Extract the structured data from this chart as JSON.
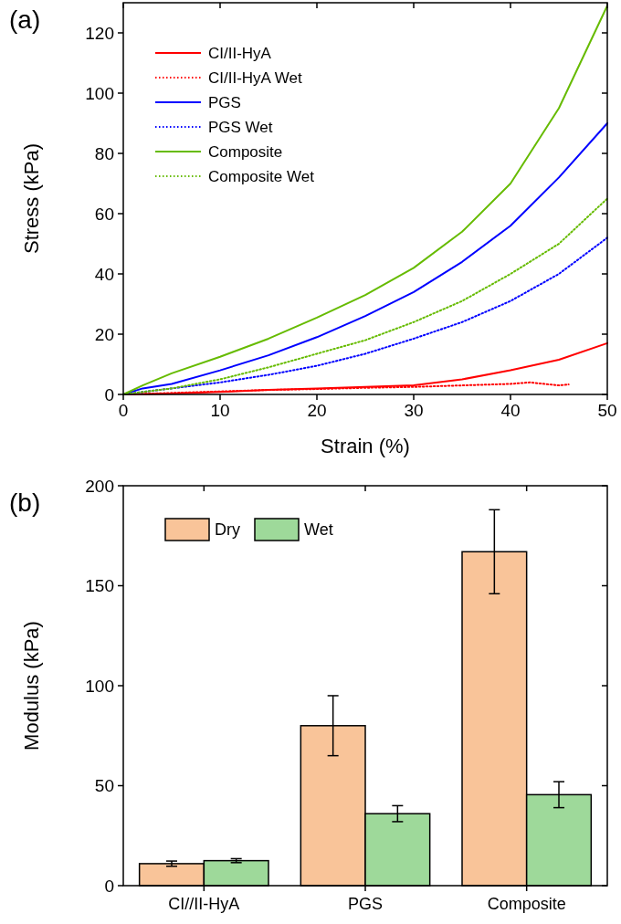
{
  "chart_data": [
    {
      "type": "line",
      "title": "(a)",
      "xlabel": "Strain (%)",
      "ylabel": "Stress (kPa)",
      "xlim": [
        0,
        50
      ],
      "ylim": [
        0,
        130
      ],
      "xticks": [
        0,
        10,
        20,
        30,
        40,
        50
      ],
      "yticks": [
        0,
        20,
        40,
        60,
        80,
        100,
        120
      ],
      "grid": false,
      "legend": "top left",
      "marker": "none",
      "series": [
        {
          "name": "CI/II-HyA",
          "color": "#ff0000",
          "line_style": "solid",
          "x": [
            0,
            5,
            10,
            15,
            20,
            25,
            30,
            35,
            40,
            45,
            50
          ],
          "values": [
            0,
            0.3,
            0.8,
            1.5,
            2,
            2.5,
            3,
            5,
            8,
            11.5,
            17
          ]
        },
        {
          "name": "CI/II-HyA Wet",
          "color": "#ff0000",
          "line_style": "dotted",
          "x": [
            0,
            5,
            10,
            15,
            20,
            25,
            30,
            35,
            40,
            42,
            45,
            46
          ],
          "values": [
            0,
            0.5,
            1,
            1.5,
            1.8,
            2.2,
            2.5,
            3,
            3.5,
            4,
            3,
            3.3
          ]
        },
        {
          "name": "PGS",
          "color": "#0000ff",
          "line_style": "solid",
          "x": [
            0,
            2,
            5,
            10,
            15,
            20,
            25,
            30,
            35,
            40,
            45,
            50
          ],
          "values": [
            0,
            2,
            3.5,
            8,
            13,
            19,
            26,
            34,
            44,
            56,
            72,
            90
          ]
        },
        {
          "name": "PGS Wet",
          "color": "#0000ff",
          "line_style": "dotted",
          "x": [
            0,
            5,
            10,
            15,
            20,
            25,
            30,
            35,
            40,
            45,
            50
          ],
          "values": [
            0,
            2,
            4,
            6.5,
            9.5,
            13.5,
            18.5,
            24,
            31,
            40,
            52
          ]
        },
        {
          "name": "Composite",
          "color": "#66bb00",
          "line_style": "solid",
          "x": [
            0,
            2,
            5,
            10,
            15,
            20,
            25,
            30,
            35,
            40,
            45,
            50
          ],
          "values": [
            0,
            3,
            7,
            12.5,
            18.5,
            25.5,
            33,
            42,
            54,
            70,
            95,
            129
          ]
        },
        {
          "name": "Composite Wet",
          "color": "#66bb00",
          "line_style": "dotted",
          "x": [
            0,
            5,
            10,
            15,
            20,
            25,
            30,
            35,
            40,
            45,
            50
          ],
          "values": [
            0,
            2,
            5,
            9,
            13.5,
            18,
            24,
            31,
            40,
            50,
            65
          ]
        }
      ]
    },
    {
      "type": "bar",
      "title": "(b)",
      "ylabel": "Modulus (kPa)",
      "categories": [
        "CI//II-HyA",
        "PGS",
        "Composite"
      ],
      "ylim": [
        0,
        200
      ],
      "yticks": [
        0,
        50,
        100,
        150,
        200
      ],
      "grid": false,
      "legend": "top left",
      "series": [
        {
          "name": "Dry",
          "color": "#f9c499",
          "values": [
            11,
            80,
            167
          ],
          "errors": [
            1.3,
            15,
            21
          ]
        },
        {
          "name": "Wet",
          "color": "#9ed99a",
          "values": [
            12.5,
            36,
            45.5
          ],
          "errors": [
            1,
            4,
            6.5
          ]
        }
      ]
    }
  ]
}
